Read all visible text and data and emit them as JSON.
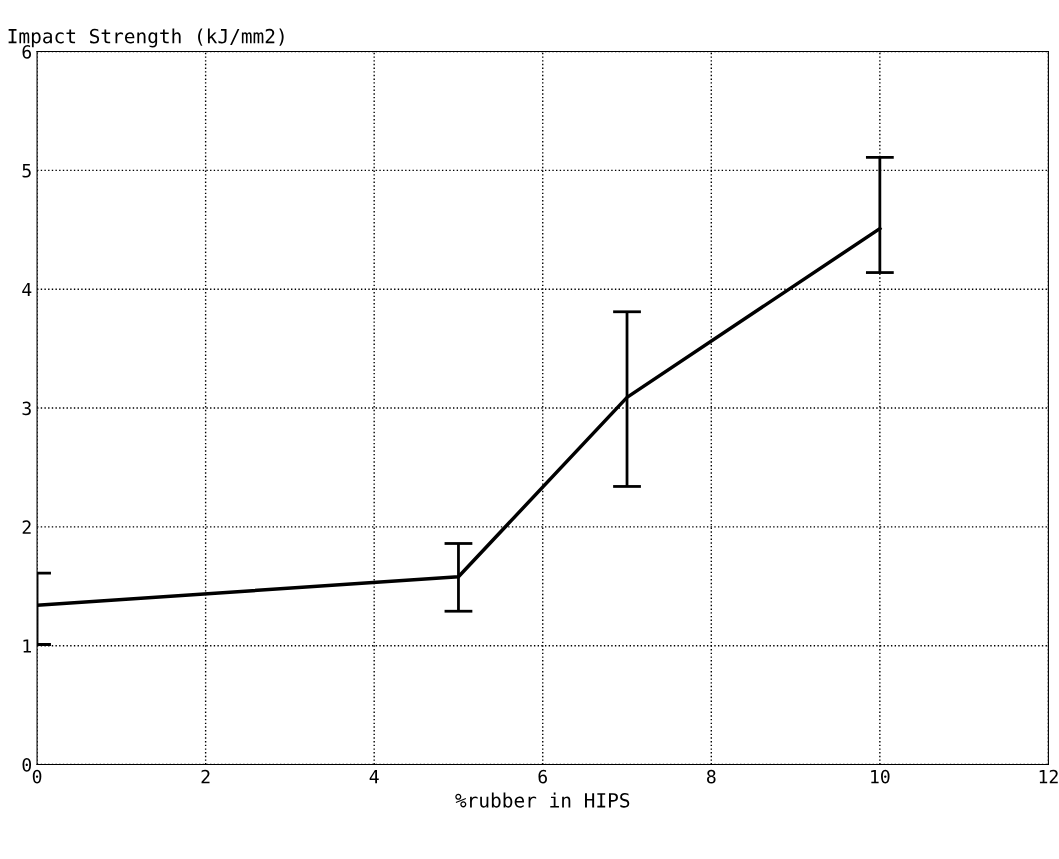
{
  "chart_data": {
    "type": "line",
    "title": "Impact Strength (kJ/mm2)",
    "xlabel": "%rubber in HIPS",
    "x": [
      0,
      5,
      7,
      10
    ],
    "series": [
      {
        "color": "#000000",
        "values": [
          1.34,
          1.58,
          3.09,
          4.51
        ],
        "errors": [
          [
            1.01,
            1.61
          ],
          [
            1.29,
            1.86
          ],
          [
            2.34,
            3.81
          ],
          [
            4.14,
            5.11
          ]
        ]
      }
    ],
    "xlim": [
      0,
      12
    ],
    "xticks": [
      0,
      2,
      4,
      6,
      8,
      10,
      12
    ],
    "ylim": [
      0,
      6
    ],
    "yticks": [
      0,
      1,
      2,
      3,
      4,
      5,
      6
    ],
    "grid": true,
    "marker": "none",
    "line_style": "solid"
  }
}
